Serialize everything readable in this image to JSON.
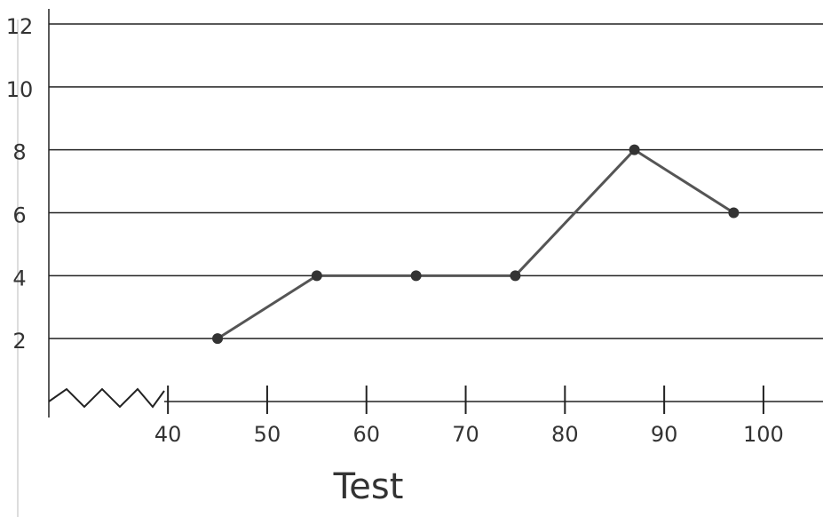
{
  "chart_data": {
    "type": "line",
    "x_label": "Test",
    "x": [
      45,
      55,
      65,
      75,
      87,
      97
    ],
    "values": [
      2,
      4,
      4,
      4,
      8,
      6
    ],
    "color": "#555555",
    "xlim": [
      28,
      106
    ],
    "xticks": [
      40,
      50,
      60,
      70,
      80,
      90,
      100
    ],
    "ylim": [
      0,
      12
    ],
    "yticks": [
      2,
      4,
      6,
      8,
      10,
      12
    ],
    "grid": true
  }
}
